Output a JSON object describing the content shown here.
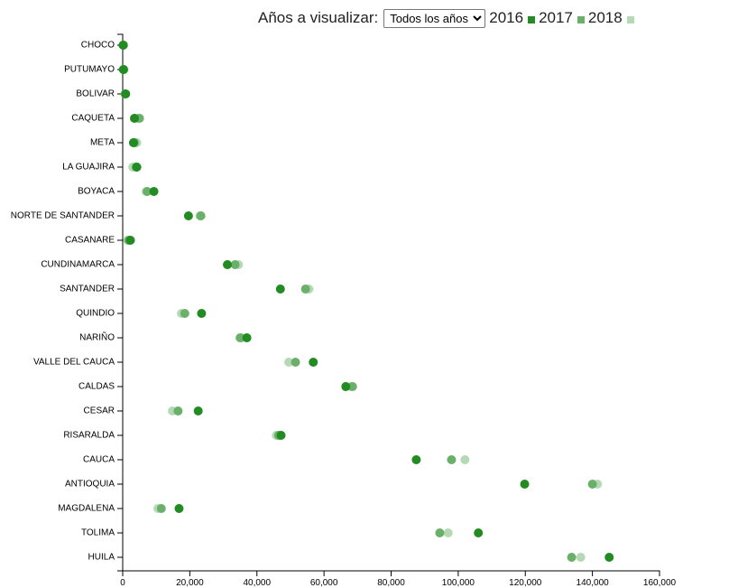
{
  "controls": {
    "label": "Años a visualizar:",
    "select_value": "Todos los años",
    "select_options": [
      "Todos los años"
    ]
  },
  "colors": {
    "2016": "#228b22",
    "2017": "#6aaf6a",
    "2018": "#b5d9b5"
  },
  "chart_data": {
    "type": "scatter",
    "title": "",
    "xlabel": "",
    "ylabel": "",
    "xlim": [
      0,
      160000
    ],
    "x_ticks": [
      0,
      20000,
      40000,
      60000,
      80000,
      100000,
      120000,
      140000,
      160000
    ],
    "x_tick_labels": [
      "0",
      "20,000",
      "40,000",
      "60,000",
      "80,000",
      "100,000",
      "120,000",
      "140,000",
      "160,000"
    ],
    "legend_position": "top-right",
    "categories": [
      "CHOCO",
      "PUTUMAYO",
      "BOLIVAR",
      "CAQUETA",
      "META",
      "LA GUAJIRA",
      "BOYACA",
      "NORTE DE SANTANDER",
      "CASANARE",
      "CUNDINAMARCA",
      "SANTANDER",
      "QUINDIO",
      "NARIÑO",
      "VALLE DEL CAUCA",
      "CALDAS",
      "CESAR",
      "RISARALDA",
      "CAUCA",
      "ANTIOQUIA",
      "MAGDALENA",
      "TOLIMA",
      "HUILA"
    ],
    "series": [
      {
        "name": "2016",
        "values": [
          100,
          200,
          900,
          3500,
          3200,
          4200,
          9300,
          19600,
          2300,
          31200,
          47000,
          23500,
          37000,
          56800,
          66500,
          22500,
          47200,
          87500,
          119800,
          16800,
          106000,
          145000
        ]
      },
      {
        "name": "2017",
        "values": [
          200,
          300,
          700,
          5000,
          3500,
          4000,
          7300,
          23300,
          1800,
          33500,
          54500,
          18500,
          35000,
          51500,
          68500,
          16500,
          46500,
          98000,
          140000,
          11500,
          94500,
          133800
        ]
      },
      {
        "name": "2018",
        "values": [
          300,
          400,
          800,
          4500,
          4200,
          3000,
          7000,
          23000,
          1500,
          34500,
          55500,
          17500,
          35500,
          49500,
          68000,
          14800,
          45800,
          102000,
          141500,
          10500,
          97000,
          136500
        ]
      }
    ]
  }
}
